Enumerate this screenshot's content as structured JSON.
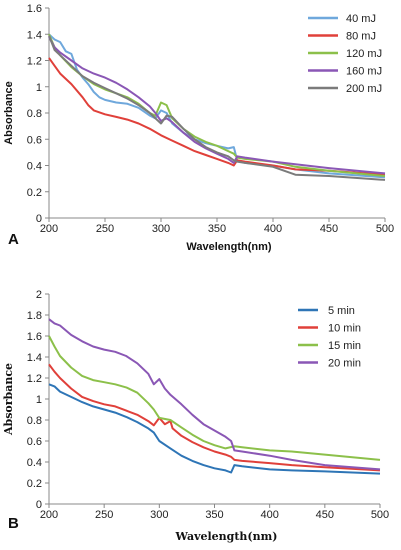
{
  "chart_data": [
    {
      "type": "line",
      "panel_label": "A",
      "xlabel": "Wavelength(nm)",
      "ylabel": "Absorbance",
      "xlim": [
        200,
        500
      ],
      "ylim": [
        0,
        1.6
      ],
      "x_ticks": [
        200,
        250,
        300,
        350,
        400,
        450,
        500
      ],
      "y_ticks": [
        0,
        0.2,
        0.4,
        0.6,
        0.8,
        1,
        1.2,
        1.4,
        1.6
      ],
      "grid": false,
      "legend_position": "top-right",
      "series": [
        {
          "name": "40 mJ",
          "color": "#6fa8dc",
          "points": [
            [
              200,
              1.4
            ],
            [
              205,
              1.36
            ],
            [
              210,
              1.34
            ],
            [
              215,
              1.27
            ],
            [
              220,
              1.25
            ],
            [
              225,
              1.13
            ],
            [
              230,
              1.07
            ],
            [
              235,
              1.02
            ],
            [
              240,
              0.96
            ],
            [
              245,
              0.92
            ],
            [
              250,
              0.9
            ],
            [
              260,
              0.88
            ],
            [
              270,
              0.87
            ],
            [
              280,
              0.84
            ],
            [
              290,
              0.78
            ],
            [
              295,
              0.76
            ],
            [
              300,
              0.82
            ],
            [
              305,
              0.8
            ],
            [
              310,
              0.72
            ],
            [
              320,
              0.65
            ],
            [
              330,
              0.6
            ],
            [
              340,
              0.57
            ],
            [
              350,
              0.55
            ],
            [
              360,
              0.53
            ],
            [
              365,
              0.54
            ],
            [
              368,
              0.44
            ],
            [
              375,
              0.42
            ],
            [
              400,
              0.4
            ],
            [
              420,
              0.37
            ],
            [
              450,
              0.34
            ],
            [
              500,
              0.31
            ]
          ]
        },
        {
          "name": "80 mJ",
          "color": "#e0403a",
          "points": [
            [
              200,
              1.22
            ],
            [
              205,
              1.16
            ],
            [
              210,
              1.1
            ],
            [
              220,
              1.02
            ],
            [
              230,
              0.92
            ],
            [
              235,
              0.86
            ],
            [
              240,
              0.82
            ],
            [
              250,
              0.79
            ],
            [
              260,
              0.77
            ],
            [
              270,
              0.75
            ],
            [
              280,
              0.72
            ],
            [
              290,
              0.68
            ],
            [
              300,
              0.63
            ],
            [
              310,
              0.59
            ],
            [
              320,
              0.55
            ],
            [
              330,
              0.51
            ],
            [
              340,
              0.48
            ],
            [
              350,
              0.45
            ],
            [
              360,
              0.42
            ],
            [
              365,
              0.4
            ],
            [
              368,
              0.44
            ],
            [
              375,
              0.43
            ],
            [
              400,
              0.4
            ],
            [
              420,
              0.37
            ],
            [
              450,
              0.36
            ],
            [
              500,
              0.33
            ]
          ]
        },
        {
          "name": "120 mJ",
          "color": "#8cc04a",
          "points": [
            [
              200,
              1.4
            ],
            [
              205,
              1.3
            ],
            [
              210,
              1.24
            ],
            [
              220,
              1.15
            ],
            [
              230,
              1.08
            ],
            [
              240,
              1.02
            ],
            [
              250,
              0.98
            ],
            [
              260,
              0.95
            ],
            [
              270,
              0.92
            ],
            [
              280,
              0.87
            ],
            [
              290,
              0.8
            ],
            [
              295,
              0.78
            ],
            [
              300,
              0.88
            ],
            [
              305,
              0.86
            ],
            [
              310,
              0.76
            ],
            [
              320,
              0.68
            ],
            [
              330,
              0.62
            ],
            [
              340,
              0.58
            ],
            [
              350,
              0.55
            ],
            [
              360,
              0.51
            ],
            [
              365,
              0.49
            ],
            [
              368,
              0.46
            ],
            [
              375,
              0.45
            ],
            [
              400,
              0.43
            ],
            [
              420,
              0.39
            ],
            [
              450,
              0.36
            ],
            [
              500,
              0.32
            ]
          ]
        },
        {
          "name": "160 mJ",
          "color": "#8a57b5",
          "points": [
            [
              200,
              1.38
            ],
            [
              205,
              1.3
            ],
            [
              210,
              1.26
            ],
            [
              220,
              1.2
            ],
            [
              230,
              1.14
            ],
            [
              240,
              1.1
            ],
            [
              250,
              1.07
            ],
            [
              260,
              1.03
            ],
            [
              270,
              0.98
            ],
            [
              280,
              0.92
            ],
            [
              290,
              0.85
            ],
            [
              295,
              0.8
            ],
            [
              300,
              0.74
            ],
            [
              305,
              0.76
            ],
            [
              310,
              0.73
            ],
            [
              320,
              0.65
            ],
            [
              330,
              0.58
            ],
            [
              340,
              0.53
            ],
            [
              350,
              0.49
            ],
            [
              360,
              0.45
            ],
            [
              365,
              0.42
            ],
            [
              368,
              0.47
            ],
            [
              375,
              0.46
            ],
            [
              400,
              0.43
            ],
            [
              420,
              0.41
            ],
            [
              450,
              0.38
            ],
            [
              500,
              0.34
            ]
          ]
        },
        {
          "name": "200 mJ",
          "color": "#7b7b7b",
          "points": [
            [
              200,
              1.39
            ],
            [
              205,
              1.28
            ],
            [
              210,
              1.24
            ],
            [
              220,
              1.16
            ],
            [
              230,
              1.08
            ],
            [
              240,
              1.03
            ],
            [
              250,
              0.99
            ],
            [
              260,
              0.95
            ],
            [
              270,
              0.91
            ],
            [
              280,
              0.86
            ],
            [
              290,
              0.8
            ],
            [
              295,
              0.76
            ],
            [
              300,
              0.72
            ],
            [
              305,
              0.78
            ],
            [
              310,
              0.77
            ],
            [
              320,
              0.68
            ],
            [
              330,
              0.6
            ],
            [
              340,
              0.54
            ],
            [
              350,
              0.5
            ],
            [
              360,
              0.47
            ],
            [
              365,
              0.44
            ],
            [
              368,
              0.43
            ],
            [
              375,
              0.42
            ],
            [
              400,
              0.39
            ],
            [
              420,
              0.33
            ],
            [
              450,
              0.32
            ],
            [
              500,
              0.29
            ]
          ]
        }
      ]
    },
    {
      "type": "line",
      "panel_label": "B",
      "xlabel": "Wavelength(nm)",
      "ylabel": "Absorbance",
      "xlim": [
        200,
        500
      ],
      "ylim": [
        0,
        2
      ],
      "x_ticks": [
        200,
        250,
        300,
        350,
        400,
        450,
        500
      ],
      "y_ticks": [
        0,
        0.2,
        0.4,
        0.6,
        0.8,
        1,
        1.2,
        1.4,
        1.6,
        1.8,
        2
      ],
      "grid": false,
      "legend_position": "top-right",
      "series": [
        {
          "name": "5 min",
          "color": "#2e75b6",
          "points": [
            [
              200,
              1.14
            ],
            [
              205,
              1.12
            ],
            [
              210,
              1.07
            ],
            [
              220,
              1.02
            ],
            [
              230,
              0.97
            ],
            [
              240,
              0.93
            ],
            [
              250,
              0.9
            ],
            [
              260,
              0.87
            ],
            [
              270,
              0.83
            ],
            [
              280,
              0.78
            ],
            [
              290,
              0.72
            ],
            [
              295,
              0.68
            ],
            [
              300,
              0.6
            ],
            [
              310,
              0.53
            ],
            [
              320,
              0.46
            ],
            [
              330,
              0.41
            ],
            [
              340,
              0.37
            ],
            [
              350,
              0.34
            ],
            [
              360,
              0.32
            ],
            [
              365,
              0.3
            ],
            [
              368,
              0.37
            ],
            [
              375,
              0.36
            ],
            [
              400,
              0.33
            ],
            [
              420,
              0.32
            ],
            [
              450,
              0.31
            ],
            [
              500,
              0.29
            ]
          ]
        },
        {
          "name": "10 min",
          "color": "#e0403a",
          "points": [
            [
              200,
              1.33
            ],
            [
              205,
              1.26
            ],
            [
              210,
              1.2
            ],
            [
              220,
              1.1
            ],
            [
              230,
              1.02
            ],
            [
              240,
              0.98
            ],
            [
              250,
              0.95
            ],
            [
              260,
              0.93
            ],
            [
              270,
              0.89
            ],
            [
              280,
              0.85
            ],
            [
              290,
              0.79
            ],
            [
              295,
              0.75
            ],
            [
              300,
              0.82
            ],
            [
              305,
              0.76
            ],
            [
              310,
              0.79
            ],
            [
              312,
              0.72
            ],
            [
              320,
              0.65
            ],
            [
              330,
              0.59
            ],
            [
              340,
              0.54
            ],
            [
              350,
              0.5
            ],
            [
              360,
              0.47
            ],
            [
              365,
              0.45
            ],
            [
              368,
              0.42
            ],
            [
              375,
              0.41
            ],
            [
              400,
              0.39
            ],
            [
              420,
              0.37
            ],
            [
              450,
              0.35
            ],
            [
              500,
              0.32
            ]
          ]
        },
        {
          "name": "15 min",
          "color": "#8cc04a",
          "points": [
            [
              200,
              1.6
            ],
            [
              205,
              1.5
            ],
            [
              210,
              1.41
            ],
            [
              220,
              1.3
            ],
            [
              230,
              1.22
            ],
            [
              240,
              1.18
            ],
            [
              250,
              1.16
            ],
            [
              260,
              1.14
            ],
            [
              270,
              1.11
            ],
            [
              280,
              1.06
            ],
            [
              290,
              0.96
            ],
            [
              295,
              0.9
            ],
            [
              300,
              0.82
            ],
            [
              310,
              0.8
            ],
            [
              320,
              0.73
            ],
            [
              330,
              0.66
            ],
            [
              340,
              0.6
            ],
            [
              350,
              0.56
            ],
            [
              360,
              0.53
            ],
            [
              368,
              0.55
            ],
            [
              375,
              0.54
            ],
            [
              400,
              0.51
            ],
            [
              420,
              0.5
            ],
            [
              450,
              0.47
            ],
            [
              500,
              0.42
            ]
          ]
        },
        {
          "name": "20 min",
          "color": "#8a57b5",
          "points": [
            [
              200,
              1.76
            ],
            [
              205,
              1.72
            ],
            [
              210,
              1.7
            ],
            [
              220,
              1.61
            ],
            [
              230,
              1.55
            ],
            [
              240,
              1.5
            ],
            [
              250,
              1.47
            ],
            [
              260,
              1.45
            ],
            [
              270,
              1.41
            ],
            [
              280,
              1.34
            ],
            [
              290,
              1.24
            ],
            [
              295,
              1.14
            ],
            [
              300,
              1.19
            ],
            [
              305,
              1.1
            ],
            [
              310,
              1.04
            ],
            [
              320,
              0.95
            ],
            [
              330,
              0.85
            ],
            [
              340,
              0.76
            ],
            [
              350,
              0.7
            ],
            [
              360,
              0.64
            ],
            [
              365,
              0.6
            ],
            [
              368,
              0.51
            ],
            [
              375,
              0.5
            ],
            [
              400,
              0.46
            ],
            [
              420,
              0.42
            ],
            [
              450,
              0.37
            ],
            [
              500,
              0.33
            ]
          ]
        }
      ]
    }
  ]
}
